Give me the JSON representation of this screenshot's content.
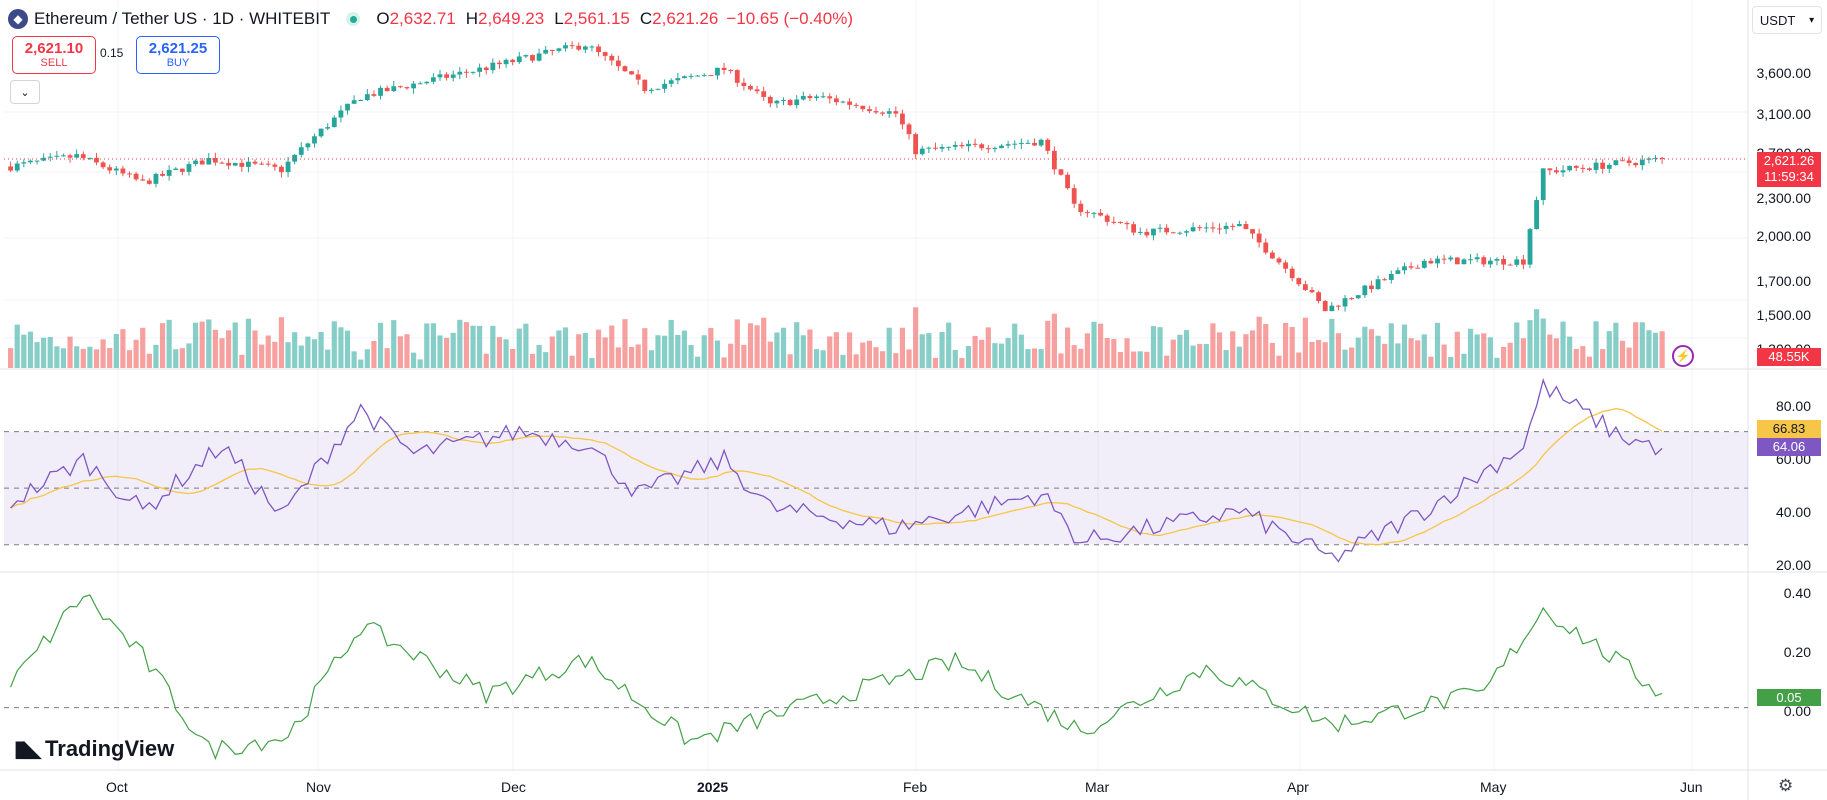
{
  "header": {
    "symbol_title": "Ethereum / Tether US · 1D · WHITEBIT",
    "open_label": "O",
    "open": "2,632.71",
    "high_label": "H",
    "high": "2,649.23",
    "low_label": "L",
    "low": "2,561.15",
    "close_label": "C",
    "close": "2,621.26",
    "change": "−10.65 (−0.40%)"
  },
  "trade": {
    "sell_price": "2,621.10",
    "sell_label": "SELL",
    "spread": "0.15",
    "buy_price": "2,621.25",
    "buy_label": "BUY"
  },
  "currency": {
    "label": "USDT"
  },
  "price_scale": {
    "ticks": [
      "3,600.00",
      "3,100.00",
      "2,700.00",
      "2,300.00",
      "2,000.00",
      "1,700.00",
      "1,500.00",
      "1,300.00"
    ],
    "last_price": "2,621.26",
    "countdown": "11:59:34",
    "volume_value": "48.55K"
  },
  "rsi_scale": {
    "ticks": [
      "80.00",
      "60.00",
      "40.00",
      "20.00"
    ],
    "ma_value": "66.83",
    "rsi_value": "64.06"
  },
  "osc_scale": {
    "ticks": [
      "0.40",
      "0.20",
      "0.00"
    ],
    "value": "0.05"
  },
  "time_axis": {
    "labels": [
      "Oct",
      "Nov",
      "Dec",
      "2025",
      "Feb",
      "Mar",
      "Apr",
      "May",
      "Jun"
    ]
  },
  "branding": {
    "name": "TradingView"
  },
  "colors": {
    "up": "#26a69a",
    "down": "#ef5350",
    "rsi_line": "#7e57c2",
    "rsi_ma": "#f7c548",
    "oscillator": "#43a047",
    "last_price_badge": "#f23645",
    "rsi_ma_badge": "#f7c548",
    "rsi_badge": "#7e57c2",
    "osc_badge": "#43a047"
  },
  "chart_data": {
    "type": "candlestick",
    "x_range": [
      "2024-09-19",
      "2025-06-10"
    ],
    "price_points": [
      {
        "date": "2024-09-20",
        "close": 2550
      },
      {
        "date": "2024-09-30",
        "close": 2650
      },
      {
        "date": "2024-10-10",
        "close": 2400
      },
      {
        "date": "2024-10-20",
        "close": 2620
      },
      {
        "date": "2024-10-31",
        "close": 2520
      },
      {
        "date": "2024-11-12",
        "close": 3300
      },
      {
        "date": "2024-11-30",
        "close": 3650
      },
      {
        "date": "2024-12-16",
        "close": 4000
      },
      {
        "date": "2024-12-25",
        "close": 3400
      },
      {
        "date": "2025-01-06",
        "close": 3650
      },
      {
        "date": "2025-01-13",
        "close": 3200
      },
      {
        "date": "2025-01-20",
        "close": 3300
      },
      {
        "date": "2025-02-01",
        "close": 3100
      },
      {
        "date": "2025-02-04",
        "close": 2700
      },
      {
        "date": "2025-02-23",
        "close": 2800
      },
      {
        "date": "2025-02-28",
        "close": 2200
      },
      {
        "date": "2025-03-10",
        "close": 2000
      },
      {
        "date": "2025-03-25",
        "close": 2050
      },
      {
        "date": "2025-04-07",
        "close": 1500
      },
      {
        "date": "2025-04-22",
        "close": 1800
      },
      {
        "date": "2025-05-07",
        "close": 1800
      },
      {
        "date": "2025-05-10",
        "close": 2500
      },
      {
        "date": "2025-05-28",
        "close": 2621
      }
    ],
    "rsi_points": [
      {
        "date": "2024-09-20",
        "value": 45
      },
      {
        "date": "2024-10-01",
        "value": 60
      },
      {
        "date": "2024-10-10",
        "value": 42
      },
      {
        "date": "2024-10-22",
        "value": 65
      },
      {
        "date": "2024-10-31",
        "value": 40
      },
      {
        "date": "2024-11-12",
        "value": 78
      },
      {
        "date": "2024-11-20",
        "value": 62
      },
      {
        "date": "2024-12-06",
        "value": 70
      },
      {
        "date": "2024-12-16",
        "value": 66
      },
      {
        "date": "2024-12-24",
        "value": 48
      },
      {
        "date": "2025-01-06",
        "value": 60
      },
      {
        "date": "2025-01-13",
        "value": 43
      },
      {
        "date": "2025-02-01",
        "value": 36
      },
      {
        "date": "2025-02-23",
        "value": 48
      },
      {
        "date": "2025-03-01",
        "value": 31
      },
      {
        "date": "2025-03-25",
        "value": 42
      },
      {
        "date": "2025-04-08",
        "value": 25
      },
      {
        "date": "2025-04-22",
        "value": 42
      },
      {
        "date": "2025-05-07",
        "value": 65
      },
      {
        "date": "2025-05-10",
        "value": 86
      },
      {
        "date": "2025-05-22",
        "value": 68
      },
      {
        "date": "2025-05-28",
        "value": 64.06
      }
    ],
    "rsi_ma_last": 66.83,
    "rsi_levels": [
      70,
      50,
      30
    ],
    "rsi_ylim": [
      20,
      90
    ],
    "osc_points": [
      {
        "date": "2024-09-20",
        "value": 0.08
      },
      {
        "date": "2024-10-01",
        "value": 0.4
      },
      {
        "date": "2024-10-10",
        "value": 0.18
      },
      {
        "date": "2024-10-20",
        "value": -0.15
      },
      {
        "date": "2024-11-01",
        "value": -0.1
      },
      {
        "date": "2024-11-12",
        "value": 0.29
      },
      {
        "date": "2024-12-01",
        "value": 0.05
      },
      {
        "date": "2024-12-16",
        "value": 0.17
      },
      {
        "date": "2025-01-01",
        "value": -0.12
      },
      {
        "date": "2025-01-20",
        "value": 0.02
      },
      {
        "date": "2025-02-10",
        "value": 0.16
      },
      {
        "date": "2025-03-01",
        "value": -0.08
      },
      {
        "date": "2025-03-20",
        "value": 0.14
      },
      {
        "date": "2025-04-08",
        "value": -0.06
      },
      {
        "date": "2025-05-01",
        "value": 0.05
      },
      {
        "date": "2025-05-10",
        "value": 0.35
      },
      {
        "date": "2025-05-28",
        "value": 0.05
      }
    ],
    "osc_ylim": [
      -0.22,
      0.45
    ],
    "osc_zero_line": 0
  }
}
